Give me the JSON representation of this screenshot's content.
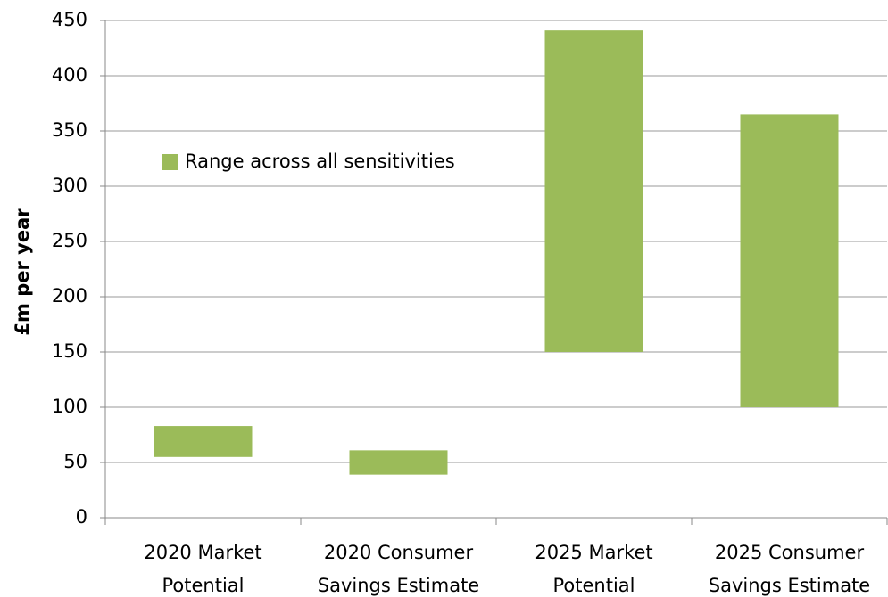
{
  "chart_data": {
    "type": "range_bar",
    "y_label": "£m per year",
    "categories": [
      "2020 Market Potential",
      "2020 Consumer Savings Estimate",
      "2025 Market Potential",
      "2025 Consumer Savings Estimate"
    ],
    "series": [
      {
        "name": "Range across all sensitivities",
        "color": "#9bbb59",
        "low": [
          55,
          39,
          150,
          100
        ],
        "high": [
          83,
          61,
          441,
          365
        ]
      }
    ],
    "ylim": [
      0,
      450
    ],
    "yticks": [
      0,
      50,
      100,
      150,
      200,
      250,
      300,
      350,
      400,
      450
    ],
    "grid": true,
    "legend": "upper-left"
  }
}
